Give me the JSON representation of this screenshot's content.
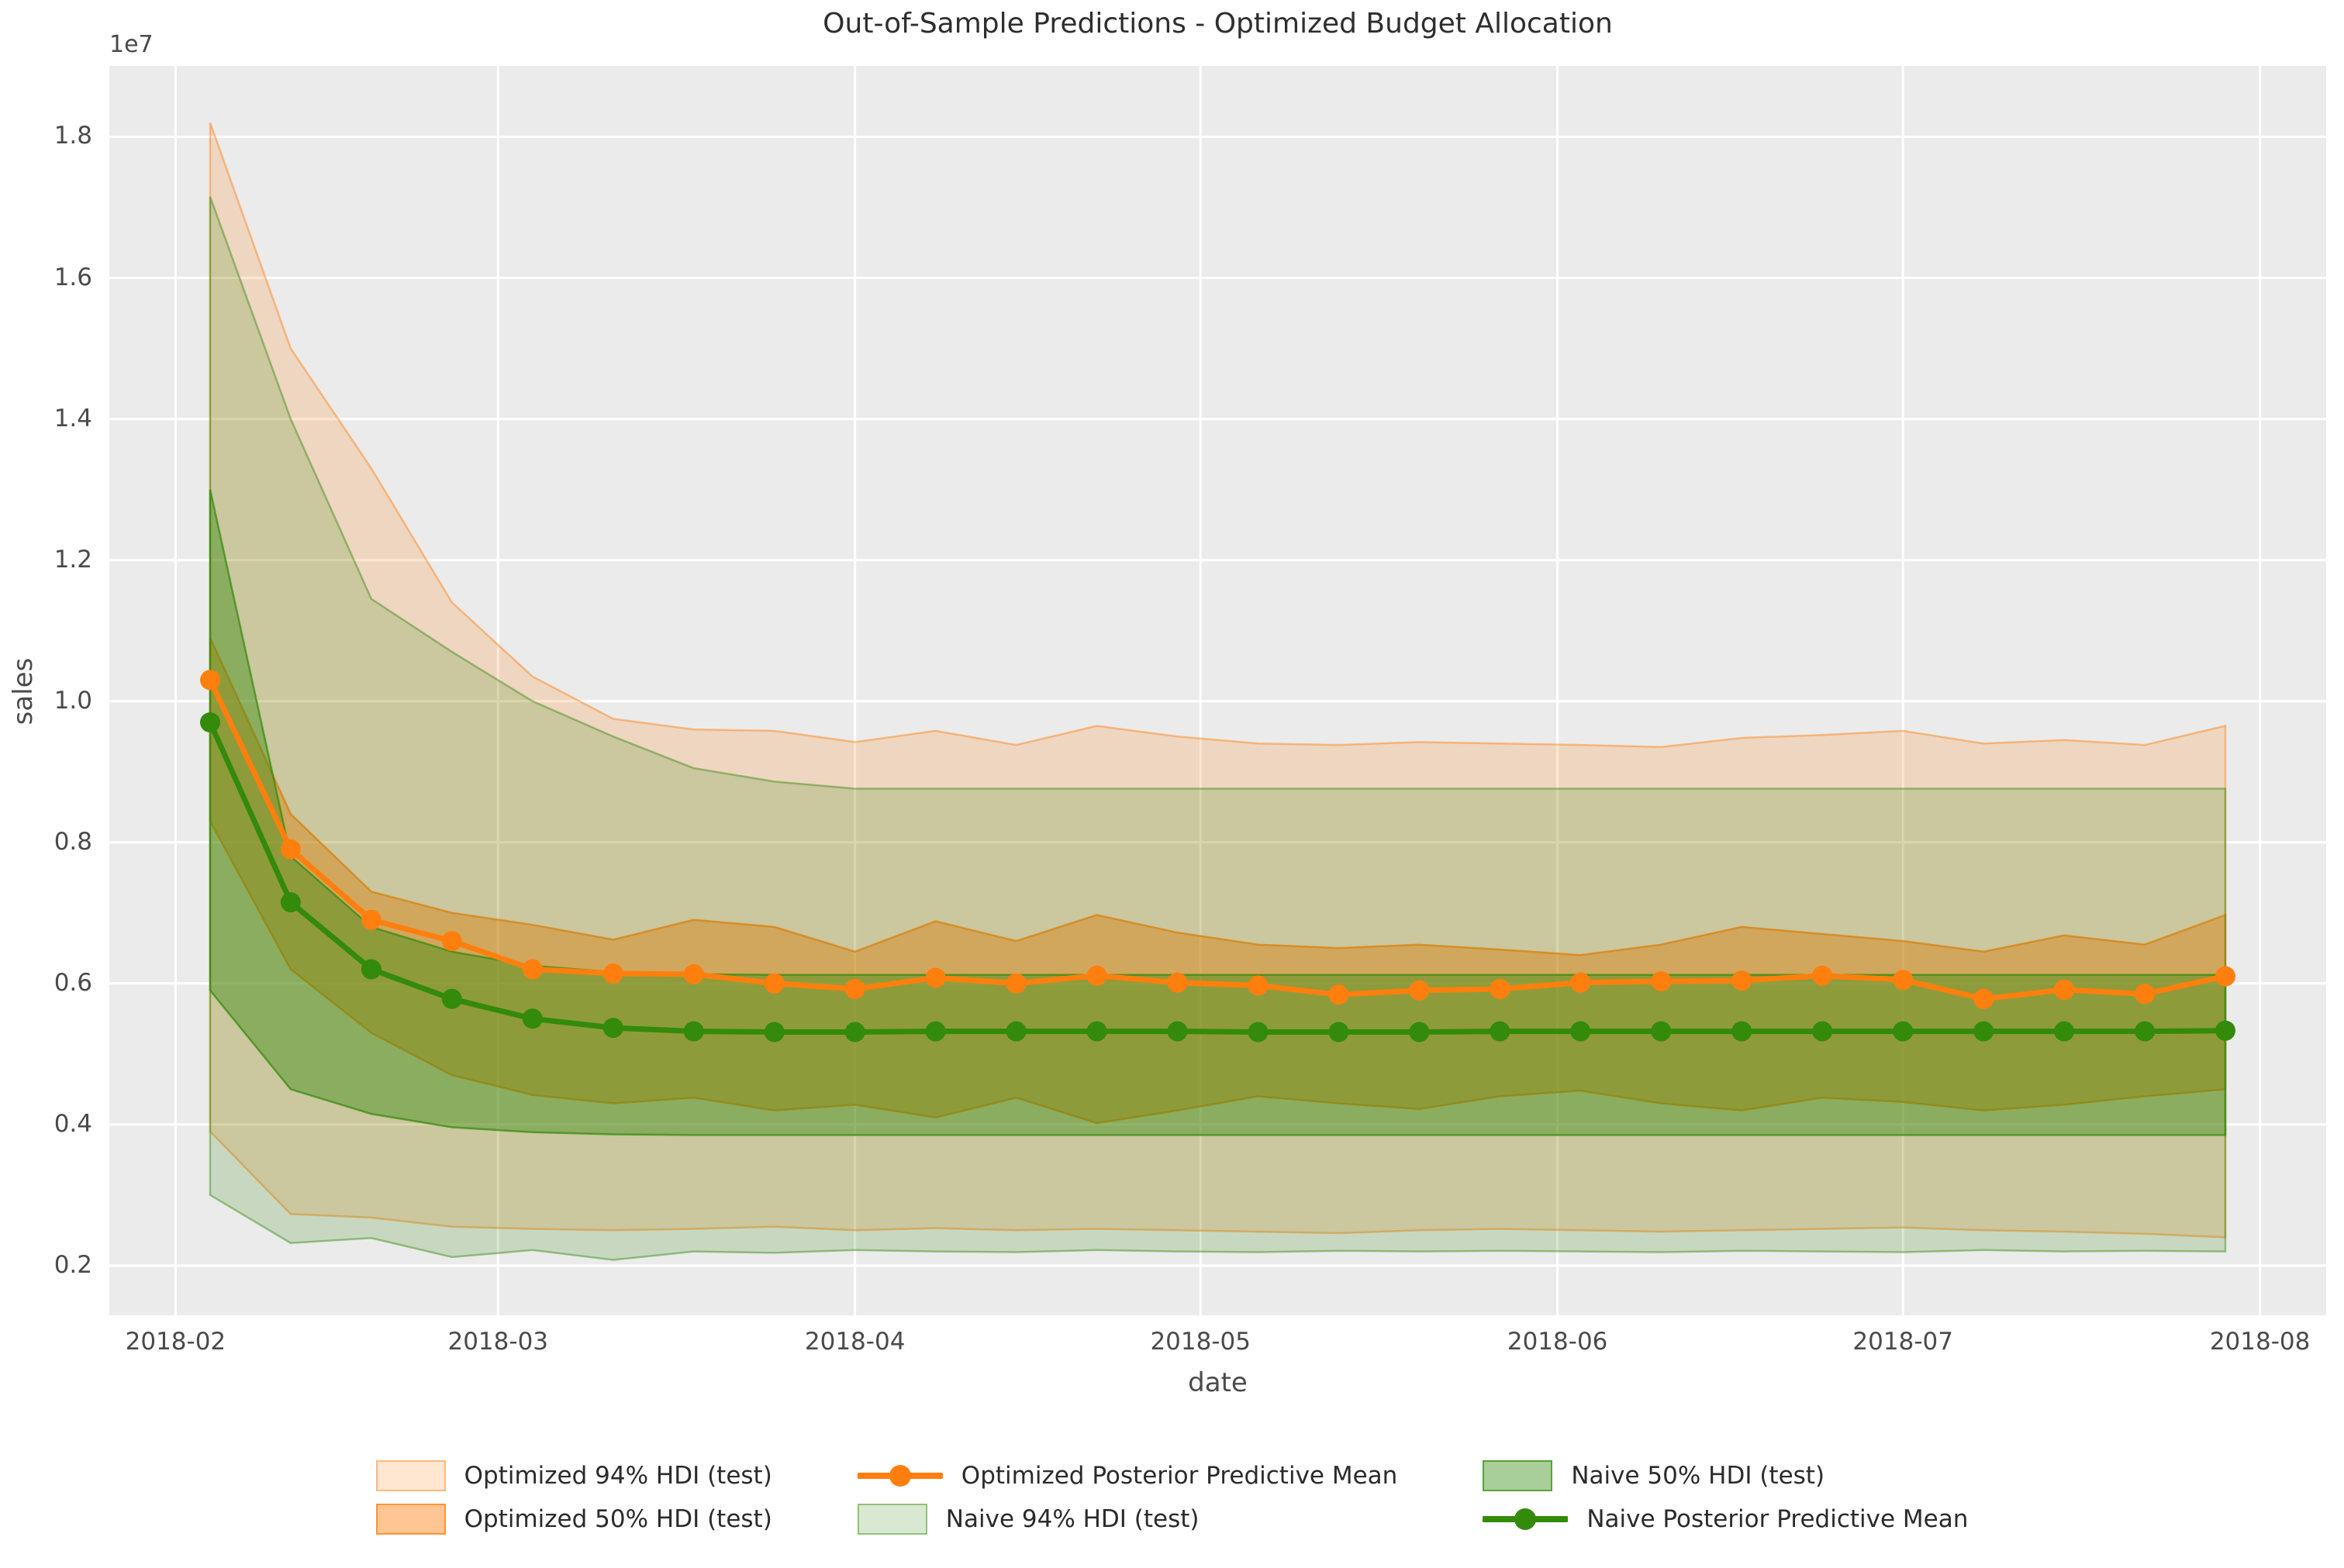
{
  "title": "Out-of-Sample Predictions - Optimized Budget Allocation",
  "axes": {
    "xlabel": "date",
    "ylabel": "sales",
    "offset_text": "1e7",
    "background": "#ebebeb",
    "grid_color": "#ffffff"
  },
  "chart_data": {
    "type": "line",
    "title": "Out-of-Sample Predictions - Optimized Budget Allocation",
    "xlabel": "date",
    "ylabel": "sales",
    "y_units": "1e7",
    "ylim": [
      0.1295,
      1.9005
    ],
    "xlim_days": [
      -8.75,
      183.75
    ],
    "grid": true,
    "legend_position": "below",
    "x_dates": [
      "2018-02-04",
      "2018-02-11",
      "2018-02-18",
      "2018-02-25",
      "2018-03-04",
      "2018-03-11",
      "2018-03-18",
      "2018-03-25",
      "2018-04-01",
      "2018-04-08",
      "2018-04-15",
      "2018-04-22",
      "2018-04-29",
      "2018-05-06",
      "2018-05-13",
      "2018-05-20",
      "2018-05-27",
      "2018-06-03",
      "2018-06-10",
      "2018-06-17",
      "2018-06-24",
      "2018-07-01",
      "2018-07-08",
      "2018-07-15",
      "2018-07-22",
      "2018-07-29"
    ],
    "x": [
      0,
      7,
      14,
      21,
      28,
      35,
      42,
      49,
      56,
      63,
      70,
      77,
      84,
      91,
      98,
      105,
      112,
      119,
      126,
      133,
      140,
      147,
      154,
      161,
      168,
      175
    ],
    "x_ticks": [
      {
        "label": "2018-02",
        "t": -3
      },
      {
        "label": "2018-03",
        "t": 25
      },
      {
        "label": "2018-04",
        "t": 56
      },
      {
        "label": "2018-05",
        "t": 86
      },
      {
        "label": "2018-06",
        "t": 117
      },
      {
        "label": "2018-07",
        "t": 147
      },
      {
        "label": "2018-08",
        "t": 178
      }
    ],
    "y_ticks": [
      0.2,
      0.4,
      0.6,
      0.8,
      1.0,
      1.2,
      1.4,
      1.6,
      1.8
    ],
    "series": [
      {
        "name": "Optimized Posterior Predictive Mean",
        "color": "#ff7f0e",
        "values": [
          1.03,
          0.79,
          0.69,
          0.66,
          0.62,
          0.614,
          0.613,
          0.6,
          0.592,
          0.608,
          0.6,
          0.611,
          0.601,
          0.597,
          0.584,
          0.59,
          0.592,
          0.601,
          0.603,
          0.604,
          0.611,
          0.605,
          0.578,
          0.591,
          0.585,
          0.61
        ]
      },
      {
        "name": "Naive Posterior Predictive Mean",
        "color": "#338a0b",
        "values": [
          0.97,
          0.715,
          0.62,
          0.578,
          0.55,
          0.537,
          0.532,
          0.531,
          0.531,
          0.532,
          0.532,
          0.532,
          0.532,
          0.531,
          0.531,
          0.531,
          0.532,
          0.532,
          0.532,
          0.532,
          0.532,
          0.532,
          0.532,
          0.532,
          0.532,
          0.533
        ]
      }
    ],
    "bands": [
      {
        "name": "Optimized 94% HDI (test)",
        "color": "#ff7f0e",
        "fill_alpha": 0.19,
        "edge_alpha": 0.45,
        "hi": [
          1.82,
          1.5,
          1.33,
          1.14,
          1.035,
          0.975,
          0.96,
          0.958,
          0.942,
          0.958,
          0.938,
          0.965,
          0.95,
          0.94,
          0.938,
          0.942,
          0.94,
          0.938,
          0.935,
          0.948,
          0.952,
          0.958,
          0.94,
          0.945,
          0.938,
          0.965
        ],
        "lo": [
          0.39,
          0.273,
          0.268,
          0.255,
          0.252,
          0.25,
          0.252,
          0.255,
          0.25,
          0.253,
          0.25,
          0.252,
          0.25,
          0.248,
          0.246,
          0.25,
          0.252,
          0.25,
          0.248,
          0.25,
          0.252,
          0.254,
          0.25,
          0.248,
          0.245,
          0.24
        ]
      },
      {
        "name": "Optimized 50% HDI (test)",
        "color": "#ff7f0e",
        "fill_alpha": 0.45,
        "edge_alpha": 0.75,
        "hi": [
          1.09,
          0.84,
          0.73,
          0.7,
          0.683,
          0.662,
          0.69,
          0.68,
          0.645,
          0.688,
          0.66,
          0.697,
          0.672,
          0.655,
          0.65,
          0.655,
          0.648,
          0.64,
          0.655,
          0.68,
          0.67,
          0.66,
          0.645,
          0.668,
          0.655,
          0.697
        ],
        "lo": [
          0.83,
          0.62,
          0.53,
          0.47,
          0.442,
          0.43,
          0.438,
          0.42,
          0.428,
          0.41,
          0.438,
          0.402,
          0.42,
          0.44,
          0.43,
          0.422,
          0.44,
          0.448,
          0.43,
          0.42,
          0.438,
          0.432,
          0.42,
          0.428,
          0.44,
          0.45
        ]
      },
      {
        "name": "Naive 94% HDI (test)",
        "color": "#338a0b",
        "fill_alpha": 0.19,
        "edge_alpha": 0.45,
        "hi": [
          1.715,
          1.4,
          1.145,
          1.07,
          1.0,
          0.95,
          0.905,
          0.886,
          0.876,
          0.876,
          0.876,
          0.876,
          0.876,
          0.876,
          0.876,
          0.876,
          0.876,
          0.876,
          0.876,
          0.876,
          0.876,
          0.876,
          0.876,
          0.876,
          0.876,
          0.876
        ],
        "lo": [
          0.3,
          0.232,
          0.239,
          0.212,
          0.222,
          0.208,
          0.22,
          0.218,
          0.222,
          0.22,
          0.219,
          0.222,
          0.22,
          0.219,
          0.221,
          0.22,
          0.221,
          0.22,
          0.219,
          0.221,
          0.22,
          0.219,
          0.222,
          0.22,
          0.221,
          0.22
        ]
      },
      {
        "name": "Naive 50% HDI (test)",
        "color": "#338a0b",
        "fill_alpha": 0.42,
        "edge_alpha": 0.72,
        "hi": [
          1.3,
          0.78,
          0.68,
          0.645,
          0.625,
          0.616,
          0.613,
          0.612,
          0.612,
          0.612,
          0.612,
          0.612,
          0.612,
          0.612,
          0.612,
          0.612,
          0.612,
          0.612,
          0.612,
          0.612,
          0.612,
          0.612,
          0.612,
          0.612,
          0.612,
          0.612
        ],
        "lo": [
          0.59,
          0.45,
          0.415,
          0.396,
          0.389,
          0.386,
          0.385,
          0.385,
          0.385,
          0.385,
          0.385,
          0.385,
          0.385,
          0.385,
          0.385,
          0.385,
          0.385,
          0.385,
          0.385,
          0.385,
          0.385,
          0.385,
          0.385,
          0.385,
          0.385,
          0.385
        ]
      }
    ]
  },
  "legend": {
    "items": [
      {
        "label": "Optimized 94% HDI (test)",
        "swatch": "patch",
        "color": "#ff7f0e",
        "alpha": 0.19
      },
      {
        "label": "Optimized 50% HDI (test)",
        "swatch": "patch",
        "color": "#ff7f0e",
        "alpha": 0.45
      },
      {
        "label": "Optimized Posterior Predictive Mean",
        "swatch": "line",
        "color": "#ff7f0e"
      },
      {
        "label": "Naive 94% HDI (test)",
        "swatch": "patch",
        "color": "#338a0b",
        "alpha": 0.19
      },
      {
        "label": "Naive 50% HDI (test)",
        "swatch": "patch",
        "color": "#338a0b",
        "alpha": 0.42
      },
      {
        "label": "Naive Posterior Predictive Mean",
        "swatch": "line",
        "color": "#338a0b"
      }
    ]
  }
}
